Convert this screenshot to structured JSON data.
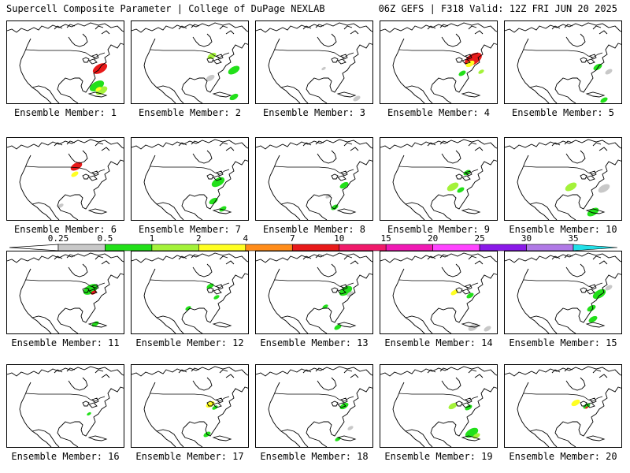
{
  "header": {
    "left": "Supercell Composite Parameter | College of DuPage NEXLAB",
    "right": "06Z GEFS | F318 Valid: 12Z FRI JUN 20 2025"
  },
  "colorbar": {
    "bins": [
      {
        "label": "0.25",
        "color": "#c8c8c8"
      },
      {
        "label": "0.5",
        "color": "#22e01a"
      },
      {
        "label": "1",
        "color": "#a4f23a"
      },
      {
        "label": "2",
        "color": "#ffff22"
      },
      {
        "label": "4",
        "color": "#ff8c1a"
      },
      {
        "label": "7",
        "color": "#e81a1a"
      },
      {
        "label": "10",
        "color": "#f01a6a"
      },
      {
        "label": "15",
        "color": "#f01ab4"
      },
      {
        "label": "20",
        "color": "#ff44ff"
      },
      {
        "label": "25",
        "color": "#8a1ae8"
      },
      {
        "label": "30",
        "color": "#b07ae6"
      },
      {
        "label": "35",
        "color": "#22e0e8"
      }
    ]
  },
  "members": [
    {
      "caption": "Ensemble Member: 1"
    },
    {
      "caption": "Ensemble Member: 2"
    },
    {
      "caption": "Ensemble Member: 3"
    },
    {
      "caption": "Ensemble Member: 4"
    },
    {
      "caption": "Ensemble Member: 5"
    },
    {
      "caption": "Ensemble Member: 6"
    },
    {
      "caption": "Ensemble Member: 7"
    },
    {
      "caption": "Ensemble Member: 8"
    },
    {
      "caption": "Ensemble Member: 9"
    },
    {
      "caption": "Ensemble Member: 10"
    },
    {
      "caption": "Ensemble Member: 11"
    },
    {
      "caption": "Ensemble Member: 12"
    },
    {
      "caption": "Ensemble Member: 13"
    },
    {
      "caption": "Ensemble Member: 14"
    },
    {
      "caption": "Ensemble Member: 15"
    },
    {
      "caption": "Ensemble Member: 16"
    },
    {
      "caption": "Ensemble Member: 17"
    },
    {
      "caption": "Ensemble Member: 18"
    },
    {
      "caption": "Ensemble Member: 19"
    },
    {
      "caption": "Ensemble Member: 20"
    }
  ]
}
